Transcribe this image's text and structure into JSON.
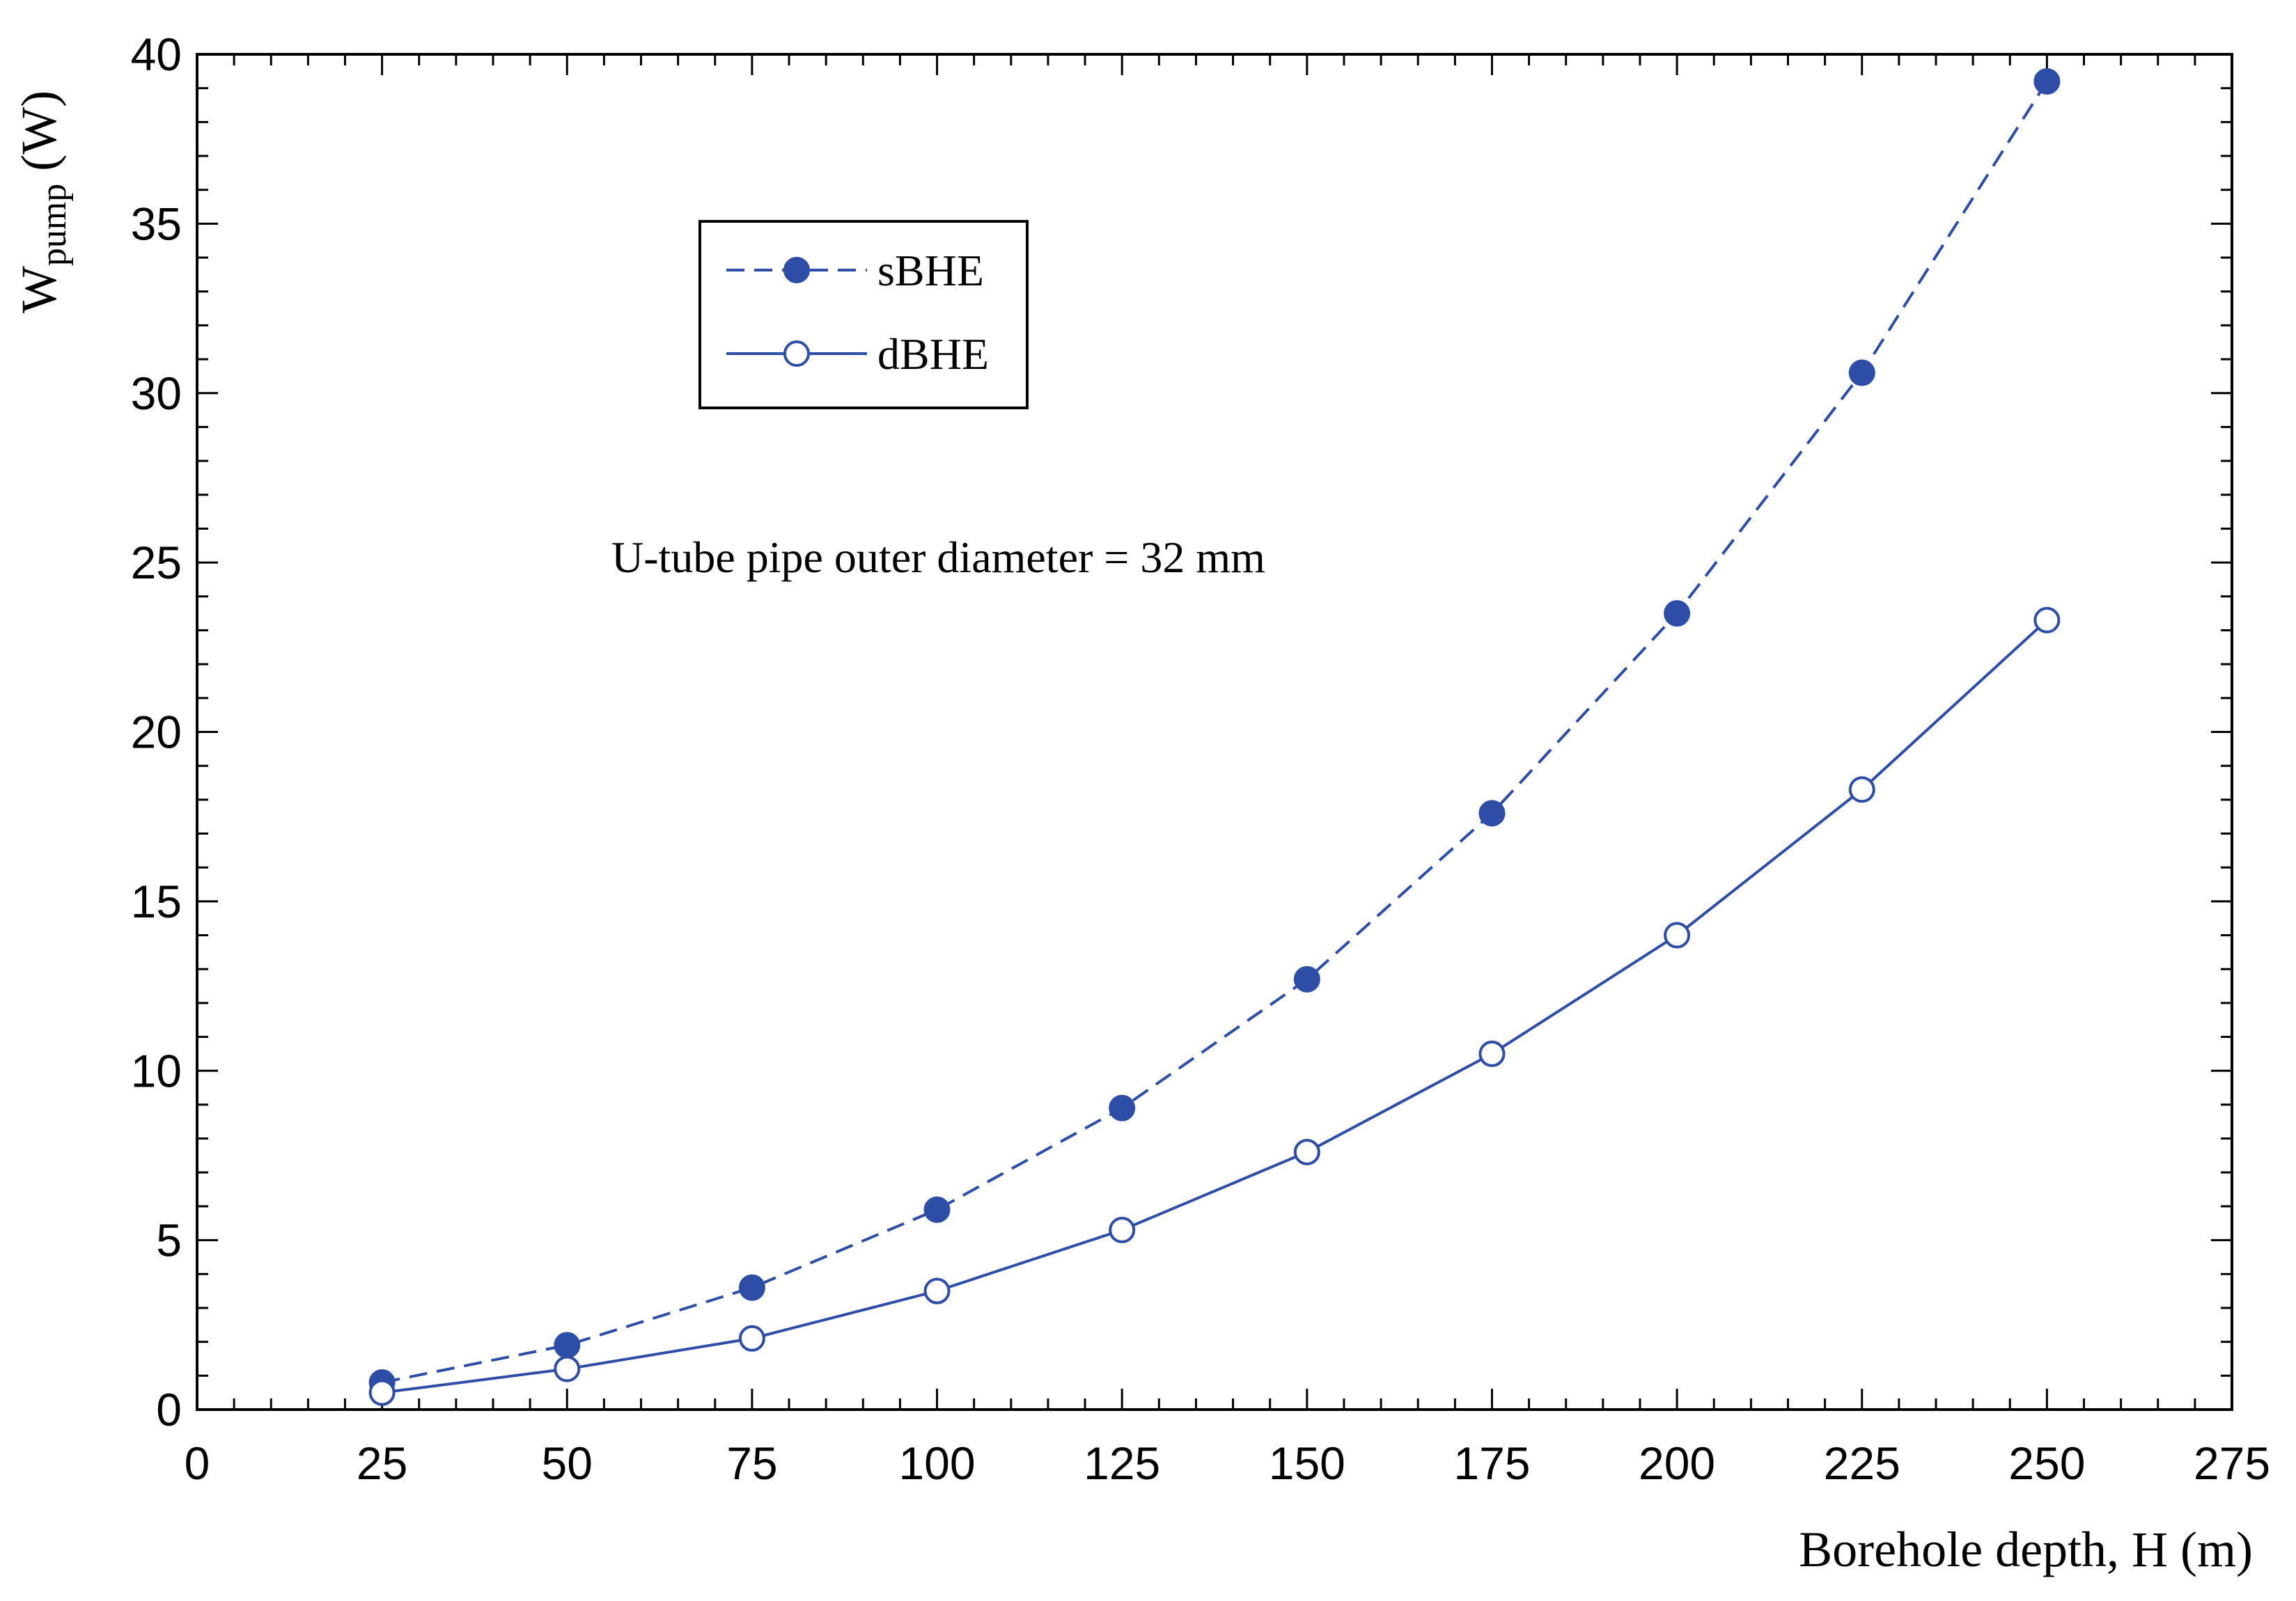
{
  "chart_data": {
    "type": "line",
    "xlabel": "Borehole depth, H (m)",
    "ylabel_main": "W",
    "ylabel_sub": "pump",
    "ylabel_unit": " (W)",
    "xlim": [
      0,
      275
    ],
    "ylim": [
      0,
      40
    ],
    "x_ticks": [
      0,
      25,
      50,
      75,
      100,
      125,
      150,
      175,
      200,
      225,
      250,
      275
    ],
    "y_ticks": [
      0,
      5,
      10,
      15,
      20,
      25,
      30,
      35,
      40
    ],
    "annotation": "U-tube pipe outer diameter = 32 mm",
    "legend_position": "upper-left",
    "grid": false,
    "x": [
      25,
      50,
      75,
      100,
      125,
      150,
      175,
      200,
      225,
      250
    ],
    "series": [
      {
        "name": "sBHE",
        "style": "dashed",
        "marker": "filled-circle",
        "color": "#2E4DA7",
        "values": [
          0.8,
          1.9,
          3.6,
          5.9,
          8.9,
          12.7,
          17.6,
          23.5,
          30.6,
          39.2
        ]
      },
      {
        "name": "dBHE",
        "style": "solid",
        "marker": "open-circle",
        "color": "#2E4DA7",
        "values": [
          0.5,
          1.2,
          2.1,
          3.5,
          5.3,
          7.6,
          10.5,
          14.0,
          18.3,
          23.3
        ]
      }
    ]
  }
}
